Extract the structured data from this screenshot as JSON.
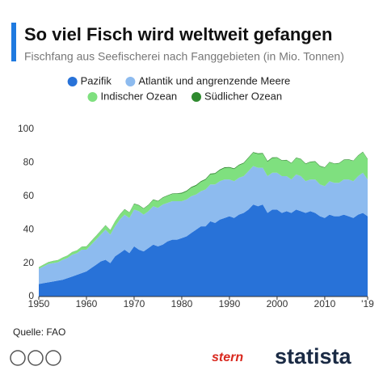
{
  "chart_data": {
    "type": "stacked-area",
    "title": "So viel Fisch wird weltweit gefangen",
    "subtitle": "Fischfang aus Seefischerei nach Fanggebieten (in Mio. Tonnen)",
    "x": [
      1950,
      1951,
      1952,
      1953,
      1954,
      1955,
      1956,
      1957,
      1958,
      1959,
      1960,
      1961,
      1962,
      1963,
      1964,
      1965,
      1966,
      1967,
      1968,
      1969,
      1970,
      1971,
      1972,
      1973,
      1974,
      1975,
      1976,
      1977,
      1978,
      1979,
      1980,
      1981,
      1982,
      1983,
      1984,
      1985,
      1986,
      1987,
      1988,
      1989,
      1990,
      1991,
      1992,
      1993,
      1994,
      1995,
      1996,
      1997,
      1998,
      1999,
      2000,
      2001,
      2002,
      2003,
      2004,
      2005,
      2006,
      2007,
      2008,
      2009,
      2010,
      2011,
      2012,
      2013,
      2014,
      2015,
      2016,
      2017,
      2018,
      2019
    ],
    "series": [
      {
        "name": "Pazifik",
        "color": "#2872d8",
        "values": [
          7.5,
          8,
          8.5,
          9,
          9.5,
          10,
          11,
          12,
          13,
          14,
          15,
          17,
          19,
          21,
          22,
          20,
          24,
          26,
          28,
          26,
          30,
          28,
          27,
          29,
          31,
          30,
          31,
          33,
          34,
          34,
          35,
          36,
          38,
          40,
          42,
          42,
          45,
          44,
          46,
          47,
          48,
          47,
          49,
          50,
          52,
          55,
          54,
          55,
          50,
          52,
          52,
          50,
          51,
          50,
          52,
          51,
          50,
          51,
          50,
          48,
          47,
          49,
          48,
          48,
          49,
          48,
          47,
          49,
          50,
          48
        ]
      },
      {
        "name": "Atlantik und angrenzende Meere",
        "color": "#8dbbef",
        "values": [
          9,
          10,
          11,
          11,
          11,
          12,
          12,
          13,
          13,
          14,
          13,
          14,
          15,
          16,
          18,
          17,
          18,
          20,
          21,
          21,
          22,
          23,
          22,
          22,
          23,
          23,
          24,
          23,
          23,
          23,
          22,
          22,
          22,
          21,
          21,
          22,
          22,
          23,
          23,
          23,
          22,
          22,
          22,
          22,
          23,
          23,
          23,
          22,
          22,
          22,
          22,
          22,
          21,
          20,
          21,
          21,
          19,
          19,
          20,
          19,
          19,
          20,
          20,
          20,
          21,
          22,
          22,
          23,
          24,
          22
        ]
      },
      {
        "name": "Indischer Ozean",
        "color": "#7fe07f",
        "values": [
          1,
          1,
          1,
          1.2,
          1.2,
          1.3,
          1.4,
          1.5,
          1.6,
          1.7,
          1.8,
          2,
          2.1,
          2.3,
          2.5,
          2.6,
          2.8,
          3,
          3.1,
          3.2,
          3.3,
          3.4,
          3.5,
          3.6,
          3.8,
          3.9,
          4,
          4.2,
          4.3,
          4.4,
          4.6,
          4.8,
          5,
          5.2,
          5.5,
          5.8,
          6,
          6.3,
          6.5,
          6.8,
          7,
          7.2,
          7.4,
          7.6,
          7.8,
          8,
          8.2,
          8.4,
          8.6,
          8.8,
          9,
          9.2,
          9.4,
          9.6,
          9.8,
          10,
          10.2,
          10.4,
          10.6,
          10.8,
          11,
          11.2,
          11.3,
          11.5,
          11.6,
          11.8,
          12,
          12.1,
          12.3,
          12
        ]
      },
      {
        "name": "Südlicher Ozean",
        "color": "#2f8a2f",
        "values": [
          0.1,
          0.1,
          0.1,
          0.1,
          0.1,
          0.1,
          0.1,
          0.1,
          0.1,
          0.1,
          0.2,
          0.2,
          0.2,
          0.2,
          0.2,
          0.2,
          0.2,
          0.2,
          0.2,
          0.2,
          0.3,
          0.3,
          0.3,
          0.3,
          0.3,
          0.3,
          0.3,
          0.3,
          0.3,
          0.3,
          0.5,
          0.5,
          0.5,
          0.5,
          0.5,
          0.5,
          0.5,
          0.5,
          0.5,
          0.5,
          0.4,
          0.4,
          0.4,
          0.4,
          0.4,
          0.4,
          0.4,
          0.4,
          0.4,
          0.4,
          0.3,
          0.3,
          0.3,
          0.3,
          0.3,
          0.3,
          0.3,
          0.3,
          0.3,
          0.3,
          0.3,
          0.3,
          0.3,
          0.3,
          0.3,
          0.3,
          0.3,
          0.3,
          0.3,
          0.3
        ]
      }
    ],
    "xlim": [
      1950,
      2019
    ],
    "xticks": [
      1950,
      1960,
      1970,
      1980,
      1990,
      2000,
      2010,
      {
        "value": 2019,
        "label": "'19"
      }
    ],
    "ylim": [
      0,
      100
    ],
    "yticks": [
      0,
      20,
      40,
      60,
      80,
      100
    ],
    "grid": false,
    "source": "Quelle: FAO",
    "brands": [
      "stern",
      "statista"
    ]
  }
}
